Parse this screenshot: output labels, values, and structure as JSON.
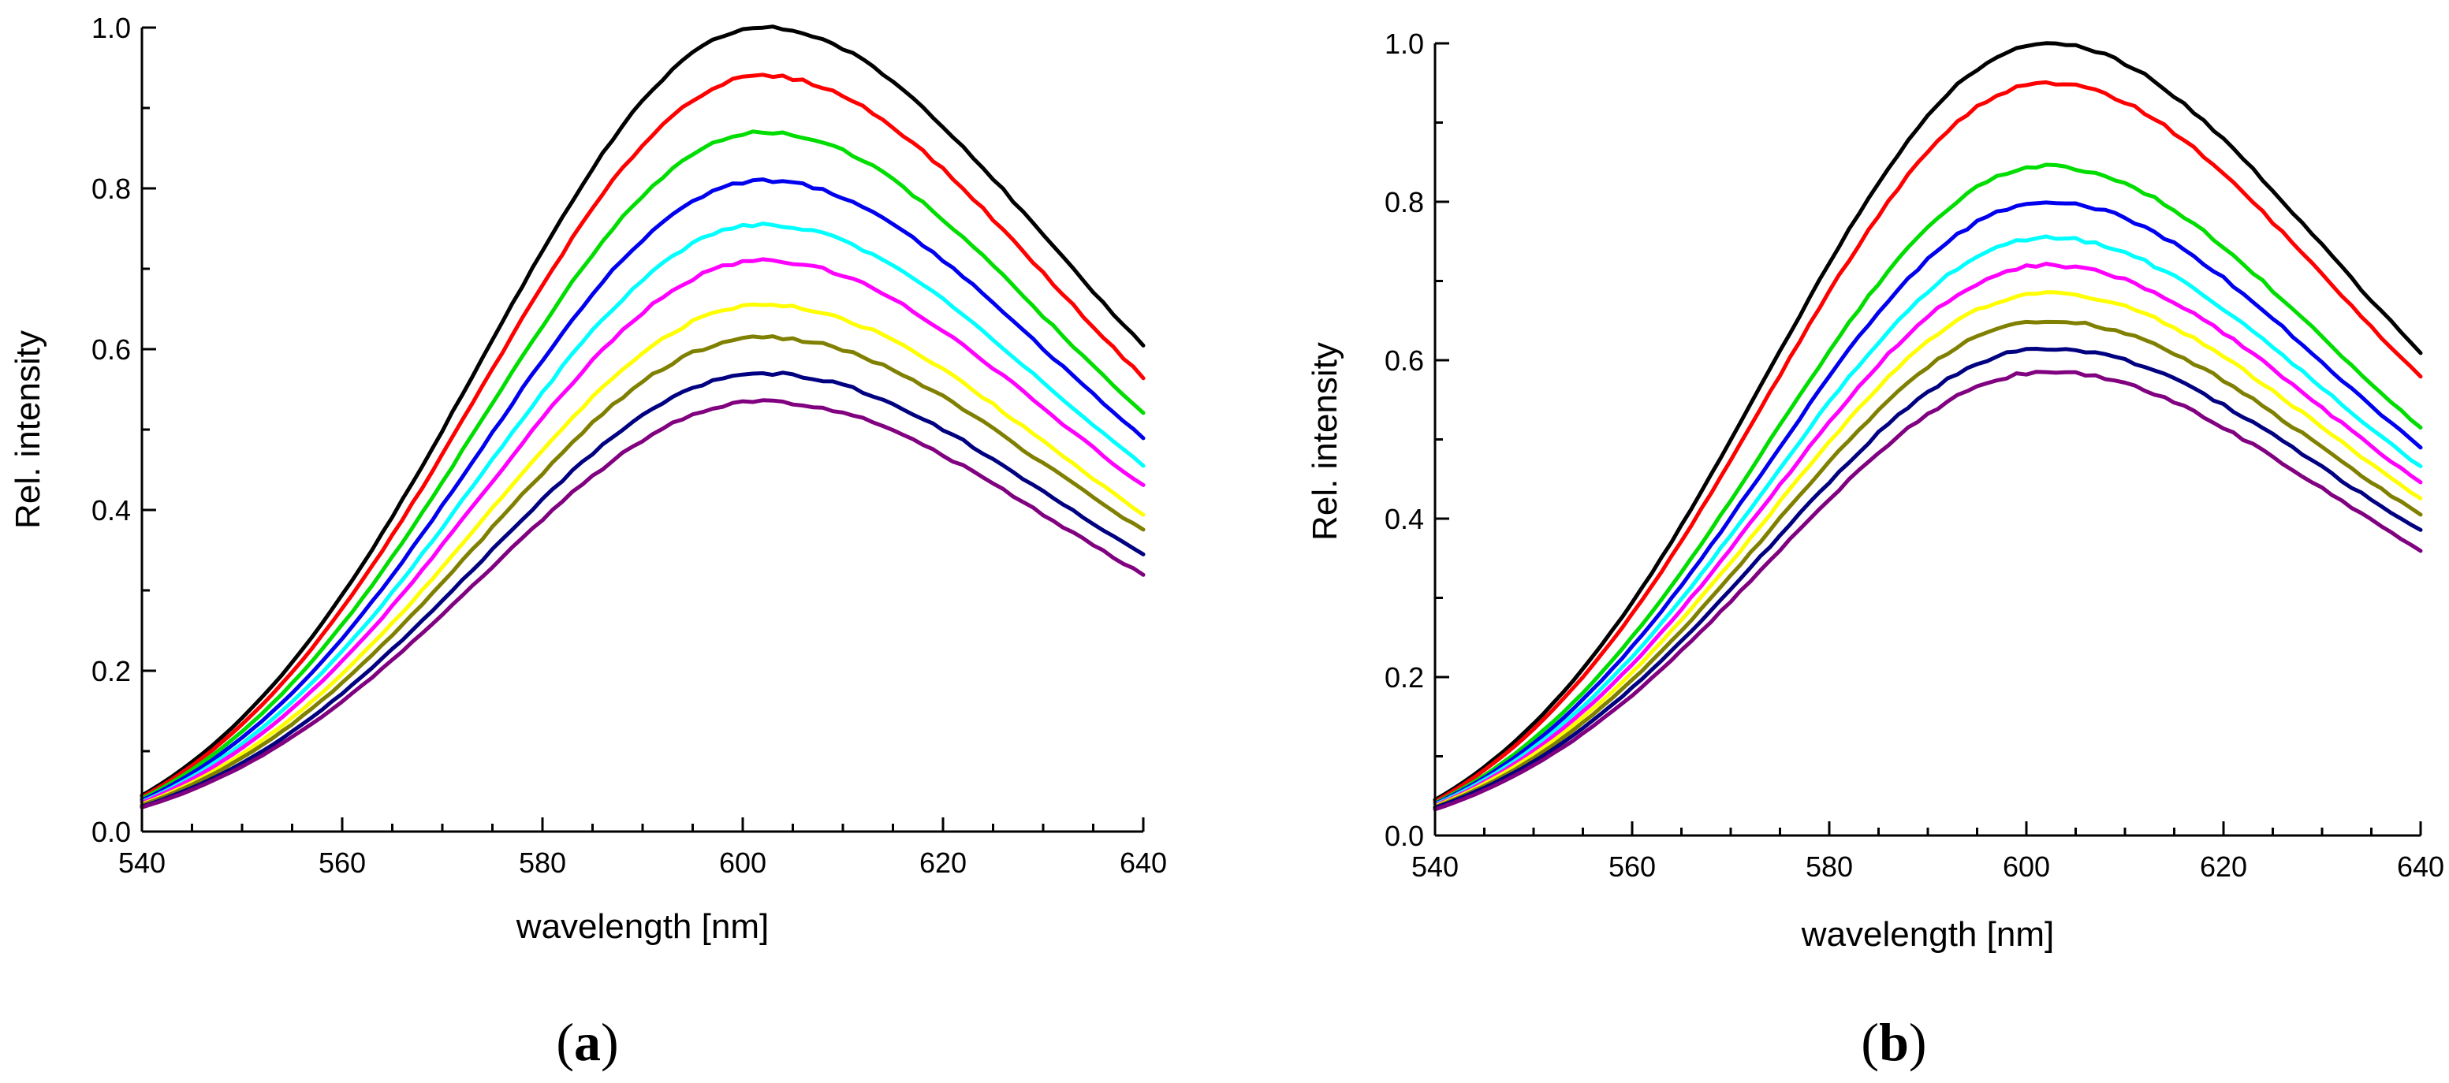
{
  "chart_data": [
    {
      "type": "line",
      "panel_label": "a",
      "xlabel": "wavelength [nm]",
      "ylabel": "Rel. intensity",
      "xlim": [
        540,
        640
      ],
      "ylim": [
        0.0,
        1.0
      ],
      "x_ticks": [
        "540",
        "560",
        "580",
        "600",
        "620",
        "640"
      ],
      "y_ticks": [
        "0.0",
        "0.2",
        "0.4",
        "0.6",
        "0.8",
        "1.0"
      ],
      "peak_wavelength": 602,
      "series": [
        {
          "name": "curve-1",
          "color": "#000000",
          "peak": 1.0,
          "start": 0.045,
          "end": 0.605
        },
        {
          "name": "curve-2",
          "color": "#ff0000",
          "peak": 0.94,
          "start": 0.043,
          "end": 0.565
        },
        {
          "name": "curve-3",
          "color": "#00dd00",
          "peak": 0.87,
          "start": 0.041,
          "end": 0.52
        },
        {
          "name": "curve-4",
          "color": "#0000ee",
          "peak": 0.81,
          "start": 0.039,
          "end": 0.49
        },
        {
          "name": "curve-5",
          "color": "#00ffff",
          "peak": 0.755,
          "start": 0.037,
          "end": 0.455
        },
        {
          "name": "curve-6",
          "color": "#ff00ff",
          "peak": 0.71,
          "start": 0.036,
          "end": 0.43
        },
        {
          "name": "curve-7",
          "color": "#ffff00",
          "peak": 0.655,
          "start": 0.034,
          "end": 0.395
        },
        {
          "name": "curve-8",
          "color": "#808000",
          "peak": 0.615,
          "start": 0.033,
          "end": 0.375
        },
        {
          "name": "curve-9",
          "color": "#000080",
          "peak": 0.57,
          "start": 0.031,
          "end": 0.345
        },
        {
          "name": "curve-10",
          "color": "#800080",
          "peak": 0.535,
          "start": 0.03,
          "end": 0.32
        }
      ]
    },
    {
      "type": "line",
      "panel_label": "b",
      "xlabel": "wavelength [nm]",
      "ylabel": "Rel. intensity",
      "xlim": [
        540,
        640
      ],
      "ylim": [
        0.0,
        1.0
      ],
      "x_ticks": [
        "540",
        "560",
        "580",
        "600",
        "620",
        "640"
      ],
      "y_ticks": [
        "0.0",
        "0.2",
        "0.4",
        "0.6",
        "0.8",
        "1.0"
      ],
      "peak_wavelength": 602,
      "series": [
        {
          "name": "curve-1",
          "color": "#000000",
          "peak": 1.0,
          "start": 0.045,
          "end": 0.61
        },
        {
          "name": "curve-2",
          "color": "#ff0000",
          "peak": 0.95,
          "start": 0.043,
          "end": 0.58
        },
        {
          "name": "curve-3",
          "color": "#00dd00",
          "peak": 0.845,
          "start": 0.041,
          "end": 0.515
        },
        {
          "name": "curve-4",
          "color": "#0000ee",
          "peak": 0.8,
          "start": 0.04,
          "end": 0.49
        },
        {
          "name": "curve-5",
          "color": "#00ffff",
          "peak": 0.755,
          "start": 0.039,
          "end": 0.465
        },
        {
          "name": "curve-6",
          "color": "#ff00ff",
          "peak": 0.72,
          "start": 0.038,
          "end": 0.445
        },
        {
          "name": "curve-7",
          "color": "#ffff00",
          "peak": 0.685,
          "start": 0.037,
          "end": 0.425
        },
        {
          "name": "curve-8",
          "color": "#808000",
          "peak": 0.65,
          "start": 0.036,
          "end": 0.405
        },
        {
          "name": "curve-9",
          "color": "#000080",
          "peak": 0.615,
          "start": 0.035,
          "end": 0.385
        },
        {
          "name": "curve-10",
          "color": "#800080",
          "peak": 0.585,
          "start": 0.033,
          "end": 0.36
        }
      ]
    }
  ]
}
